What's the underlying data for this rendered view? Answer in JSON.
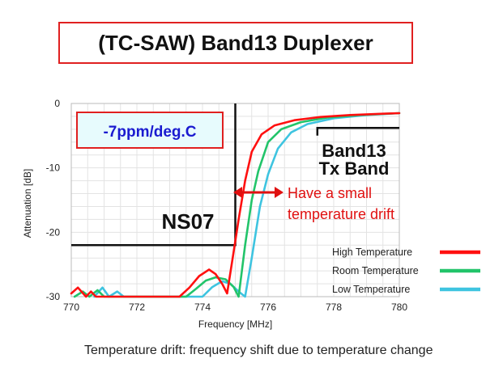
{
  "title": "(TC-SAW) Band13 Duplexer",
  "caption": "Temperature drift: frequency shift due to temperature change",
  "chart_data": {
    "type": "line",
    "xlabel": "Frequency [MHz]",
    "ylabel": "Attenuation [dB]",
    "xlim": [
      770,
      780
    ],
    "ylim": [
      -30,
      0
    ],
    "xticks": [
      "770",
      "772",
      "774",
      "776",
      "778",
      "780"
    ],
    "yticks": [
      "0",
      "-10",
      "-20",
      "-30"
    ],
    "grid": true,
    "legend_position": "bottom-right",
    "series": [
      {
        "name": "High Temperature",
        "color": "#ff1010",
        "points": [
          [
            770,
            -29.5
          ],
          [
            770.2,
            -28.6
          ],
          [
            770.45,
            -30
          ],
          [
            770.6,
            -29.2
          ],
          [
            770.75,
            -30
          ],
          [
            773.3,
            -30
          ],
          [
            773.6,
            -28.6
          ],
          [
            773.9,
            -26.8
          ],
          [
            774.2,
            -25.8
          ],
          [
            774.4,
            -26.5
          ],
          [
            774.6,
            -28
          ],
          [
            774.75,
            -29.5
          ],
          [
            774.95,
            -23
          ],
          [
            775.1,
            -18
          ],
          [
            775.3,
            -12
          ],
          [
            775.5,
            -7.5
          ],
          [
            775.8,
            -4.8
          ],
          [
            776.2,
            -3.4
          ],
          [
            776.8,
            -2.6
          ],
          [
            777.6,
            -2.1
          ],
          [
            778.5,
            -1.8
          ],
          [
            779.5,
            -1.6
          ],
          [
            780,
            -1.5
          ]
        ]
      },
      {
        "name": "Room Temperature",
        "color": "#22c46a",
        "points": [
          [
            770.1,
            -30
          ],
          [
            770.35,
            -29.2
          ],
          [
            770.55,
            -30
          ],
          [
            770.8,
            -29
          ],
          [
            771,
            -30
          ],
          [
            773.5,
            -30
          ],
          [
            773.8,
            -28.8
          ],
          [
            774.1,
            -27.5
          ],
          [
            774.4,
            -27
          ],
          [
            774.7,
            -27.3
          ],
          [
            774.95,
            -28.5
          ],
          [
            775.1,
            -30
          ],
          [
            775.3,
            -22
          ],
          [
            775.5,
            -15
          ],
          [
            775.7,
            -10.5
          ],
          [
            776,
            -6
          ],
          [
            776.4,
            -4
          ],
          [
            777,
            -2.9
          ],
          [
            777.8,
            -2.2
          ],
          [
            778.8,
            -1.8
          ],
          [
            779.6,
            -1.6
          ],
          [
            780,
            -1.5
          ]
        ]
      },
      {
        "name": "Low Temperature",
        "color": "#3ec4e0",
        "points": [
          [
            770.7,
            -30
          ],
          [
            770.95,
            -28.6
          ],
          [
            771.15,
            -30
          ],
          [
            771.4,
            -29.2
          ],
          [
            771.6,
            -30
          ],
          [
            774,
            -30
          ],
          [
            774.3,
            -28.5
          ],
          [
            774.6,
            -27.6
          ],
          [
            774.85,
            -28
          ],
          [
            775.1,
            -29.2
          ],
          [
            775.3,
            -30
          ],
          [
            775.5,
            -24
          ],
          [
            775.75,
            -16
          ],
          [
            776,
            -11
          ],
          [
            776.3,
            -7
          ],
          [
            776.7,
            -4.5
          ],
          [
            777.2,
            -3.2
          ],
          [
            778,
            -2.3
          ],
          [
            779,
            -1.8
          ],
          [
            780,
            -1.5
          ]
        ]
      }
    ],
    "mask": {
      "points": [
        [
          770,
          -22
        ],
        [
          775,
          -22
        ],
        [
          775,
          0
        ]
      ],
      "label": "NS07"
    },
    "tx_band": {
      "points": [
        [
          777.5,
          -5
        ],
        [
          777.5,
          -3.8
        ],
        [
          780,
          -3.8
        ]
      ],
      "label_line1": "Band13",
      "label_line2": "Tx Band"
    },
    "coefficient_label": "-7ppm/deg.C",
    "annotation_line1": "Have a small",
    "annotation_line2": "temperature drift"
  }
}
